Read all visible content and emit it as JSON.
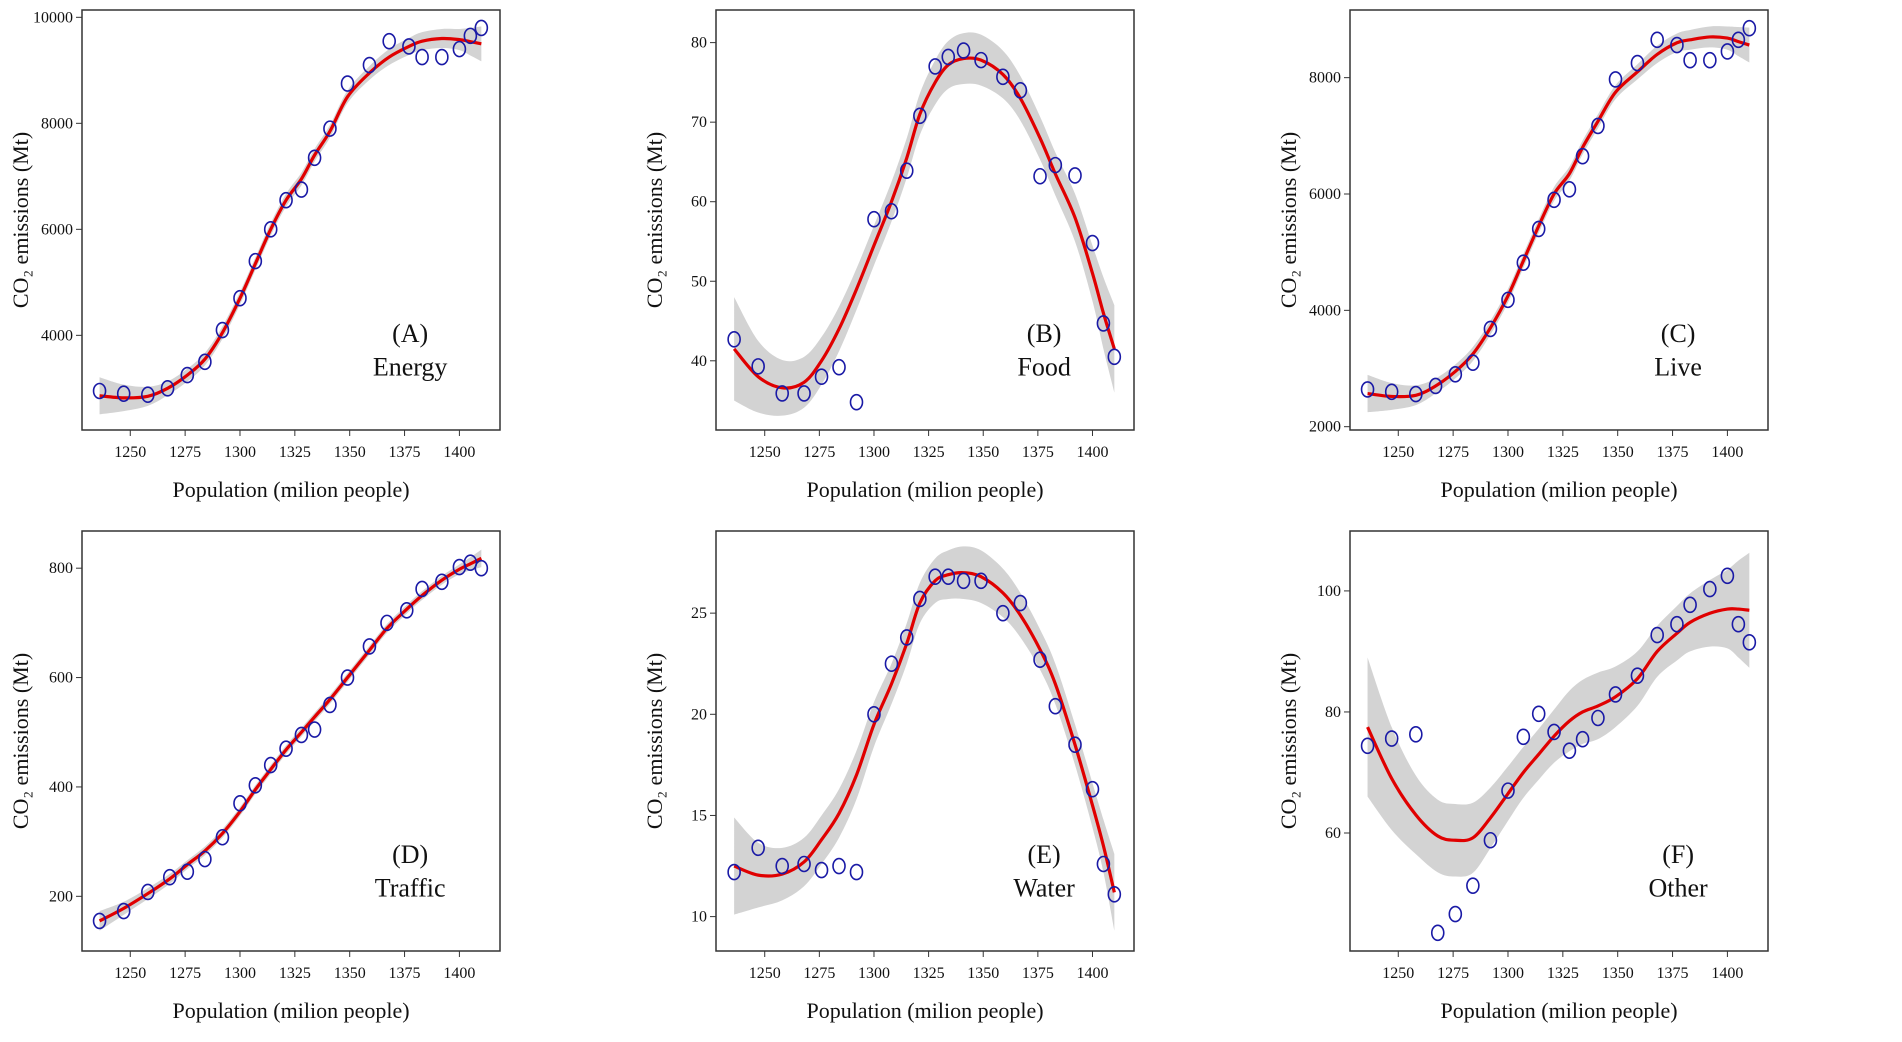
{
  "chart_data": [
    {
      "type": "scatter",
      "panel": "(A)",
      "title": "Energy",
      "xlabel": "Population (milion people)",
      "ylabel": "CO₂ emissions (Mt)",
      "xlim": [
        1228,
        1418.5
      ],
      "ylim": [
        2214,
        10138
      ],
      "xticks": [
        1250,
        1275,
        1300,
        1325,
        1350,
        1375,
        1400
      ],
      "yticks": [
        4000,
        6000,
        8000,
        10000
      ],
      "x": [
        1236,
        1247,
        1258,
        1267,
        1276,
        1284,
        1292,
        1300,
        1307,
        1314,
        1321,
        1328,
        1334,
        1341,
        1349,
        1359,
        1368,
        1377,
        1383,
        1392,
        1400,
        1405,
        1410
      ],
      "y": [
        2950,
        2900,
        2880,
        3000,
        3250,
        3500,
        4100,
        4700,
        5400,
        6000,
        6550,
        6750,
        7350,
        7900,
        8750,
        9100,
        9550,
        9450,
        9250,
        9250,
        9400,
        9650,
        9800
      ],
      "fit": [
        2860,
        2820,
        2850,
        3000,
        3250,
        3550,
        4050,
        4700,
        5350,
        6000,
        6550,
        6950,
        7400,
        7850,
        8500,
        8950,
        9250,
        9450,
        9550,
        9600,
        9580,
        9540,
        9500
      ],
      "ci_halfwidth": [
        350,
        250,
        180,
        130,
        120,
        120,
        120,
        120,
        120,
        120,
        120,
        120,
        120,
        120,
        120,
        130,
        150,
        160,
        170,
        180,
        200,
        260,
        330
      ]
    },
    {
      "type": "scatter",
      "panel": "(B)",
      "title": "Food",
      "xlabel": "Population (milion people)",
      "ylabel": "CO₂ emissions (Mt)",
      "xlim": [
        1227.7,
        1419
      ],
      "ylim": [
        31.3,
        84.1
      ],
      "xticks": [
        1250,
        1275,
        1300,
        1325,
        1350,
        1375,
        1400
      ],
      "yticks": [
        40,
        50,
        60,
        70,
        80
      ],
      "x": [
        1236,
        1247,
        1258,
        1268,
        1276,
        1284,
        1292,
        1300,
        1308,
        1315,
        1321,
        1328,
        1334,
        1341,
        1349,
        1359,
        1367,
        1376,
        1383,
        1392,
        1400,
        1405,
        1410
      ],
      "y": [
        42.7,
        39.3,
        35.9,
        35.9,
        38,
        39.2,
        34.8,
        57.8,
        58.8,
        63.9,
        70.8,
        77,
        78.2,
        79,
        77.8,
        75.7,
        74,
        63.2,
        64.6,
        63.3,
        54.8,
        44.7,
        40.5
      ],
      "fit": [
        41.5,
        38,
        36.6,
        37.3,
        40,
        44,
        49,
        54.5,
        60,
        65.5,
        71,
        75,
        77.2,
        78,
        77.8,
        76,
        73,
        68,
        63.5,
        58,
        51,
        46,
        41.5
      ],
      "ci_halfwidth": [
        6.5,
        4.5,
        3.5,
        3.2,
        3,
        2.8,
        2.6,
        2.5,
        2.5,
        2.5,
        2.6,
        2.8,
        3,
        3.2,
        3.2,
        3,
        2.8,
        2.7,
        2.7,
        3,
        3.5,
        4.5,
        5.5
      ]
    },
    {
      "type": "scatter",
      "panel": "(C)",
      "title": "Live",
      "xlabel": "Population (milion people)",
      "ylabel": "CO₂ emissions (Mt)",
      "xlim": [
        1228,
        1418.5
      ],
      "ylim": [
        1943,
        9163
      ],
      "xticks": [
        1250,
        1275,
        1300,
        1325,
        1350,
        1375,
        1400
      ],
      "yticks": [
        2000,
        4000,
        6000,
        8000
      ],
      "x": [
        1236,
        1247,
        1258,
        1267,
        1276,
        1284,
        1292,
        1300,
        1307,
        1314,
        1321,
        1328,
        1334,
        1341,
        1349,
        1359,
        1368,
        1377,
        1383,
        1392,
        1400,
        1405,
        1410
      ],
      "y": [
        2640,
        2600,
        2560,
        2700,
        2900,
        3100,
        3680,
        4180,
        4820,
        5400,
        5900,
        6080,
        6650,
        7170,
        7970,
        8250,
        8650,
        8560,
        8300,
        8300,
        8450,
        8650,
        8850
      ],
      "fit": [
        2570,
        2520,
        2540,
        2700,
        2950,
        3250,
        3700,
        4250,
        4850,
        5450,
        6000,
        6350,
        6800,
        7250,
        7750,
        8100,
        8400,
        8600,
        8650,
        8700,
        8680,
        8620,
        8560
      ],
      "ci_halfwidth": [
        320,
        230,
        170,
        130,
        120,
        120,
        120,
        120,
        120,
        120,
        120,
        120,
        120,
        120,
        120,
        130,
        150,
        160,
        170,
        180,
        200,
        250,
        300
      ]
    },
    {
      "type": "scatter",
      "panel": "(D)",
      "title": "Traffic",
      "xlabel": "Population (milion people)",
      "ylabel": "CO₂ emissions (Mt)",
      "xlim": [
        1228,
        1418.5
      ],
      "ylim": [
        100,
        868
      ],
      "xticks": [
        1250,
        1275,
        1300,
        1325,
        1350,
        1375,
        1400
      ],
      "yticks": [
        200,
        400,
        600,
        800
      ],
      "x": [
        1236,
        1247,
        1258,
        1268,
        1276,
        1284,
        1292,
        1300,
        1307,
        1314,
        1321,
        1328,
        1334,
        1341,
        1349,
        1359,
        1367,
        1376,
        1383,
        1392,
        1400,
        1405,
        1410
      ],
      "y": [
        155,
        173,
        208,
        235,
        245,
        268,
        308,
        370,
        403,
        440,
        470,
        495,
        505,
        550,
        600,
        657,
        700,
        723,
        762,
        775,
        802,
        810,
        800
      ],
      "fit": [
        155,
        178,
        205,
        232,
        258,
        283,
        315,
        355,
        395,
        432,
        468,
        500,
        528,
        560,
        600,
        650,
        690,
        725,
        750,
        778,
        798,
        808,
        818
      ],
      "ci_halfwidth": [
        18,
        12,
        10,
        9,
        8,
        8,
        8,
        8,
        8,
        8,
        8,
        8,
        8,
        8,
        8,
        8,
        8,
        8,
        8,
        8,
        9,
        12,
        16
      ]
    },
    {
      "type": "scatter",
      "panel": "(E)",
      "title": "Water",
      "xlabel": "Population (milion people)",
      "ylabel": "CO₂ emissions (Mt)",
      "xlim": [
        1227.7,
        1419
      ],
      "ylim": [
        8.3,
        29.06
      ],
      "xticks": [
        1250,
        1275,
        1300,
        1325,
        1350,
        1375,
        1400
      ],
      "yticks": [
        10,
        15,
        20,
        25
      ],
      "x": [
        1236,
        1247,
        1258,
        1268,
        1276,
        1284,
        1292,
        1300,
        1308,
        1315,
        1321,
        1328,
        1334,
        1341,
        1349,
        1359,
        1367,
        1376,
        1383,
        1392,
        1400,
        1405,
        1410
      ],
      "y": [
        12.2,
        13.4,
        12.5,
        12.6,
        12.3,
        12.5,
        12.2,
        20.0,
        22.5,
        23.8,
        25.7,
        26.8,
        26.8,
        26.6,
        26.6,
        25.0,
        25.5,
        22.7,
        20.4,
        18.5,
        16.3,
        12.6,
        11.1
      ],
      "fit": [
        12.5,
        12.05,
        12.1,
        12.7,
        13.8,
        15.1,
        17.0,
        19.5,
        21.5,
        23.5,
        25.5,
        26.6,
        26.9,
        27.0,
        26.8,
        26.0,
        24.9,
        23.2,
        21.5,
        18.5,
        15.5,
        13.5,
        11.2
      ],
      "ci_halfwidth": [
        2.4,
        1.6,
        1.3,
        1.2,
        1.2,
        1.2,
        1.2,
        1.1,
        1.0,
        1.0,
        1.0,
        1.1,
        1.2,
        1.3,
        1.3,
        1.2,
        1.1,
        1.0,
        1.0,
        1.0,
        1.1,
        1.3,
        1.9
      ]
    },
    {
      "type": "scatter",
      "panel": "(F)",
      "title": "Other",
      "xlabel": "Population (milion people)",
      "ylabel": "CO₂ emissions (Mt)",
      "xlim": [
        1228,
        1418.5
      ],
      "ylim": [
        40.5,
        109.9
      ],
      "xticks": [
        1250,
        1275,
        1300,
        1325,
        1350,
        1375,
        1400
      ],
      "yticks": [
        60,
        80,
        100
      ],
      "x": [
        1236,
        1247,
        1258,
        1268,
        1276,
        1284,
        1292,
        1300,
        1307,
        1314,
        1321,
        1328,
        1334,
        1341,
        1349,
        1359,
        1368,
        1377,
        1383,
        1392,
        1400,
        1405,
        1410
      ],
      "y": [
        74.4,
        75.6,
        76.3,
        43.5,
        46.6,
        51.3,
        58.8,
        67.0,
        75.9,
        79.7,
        76.7,
        73.6,
        75.5,
        79.0,
        82.9,
        86.0,
        92.7,
        94.5,
        97.7,
        100.3,
        102.5,
        94.5,
        91.5
      ],
      "fit": [
        77.5,
        69,
        63,
        59.5,
        58.8,
        59.2,
        62.5,
        66.5,
        70,
        73,
        76,
        78.5,
        80,
        81,
        82.5,
        85.5,
        90,
        93,
        94.8,
        96.3,
        97,
        97,
        96.8
      ],
      "ci_halfwidth": [
        11.5,
        8.5,
        6.5,
        6,
        6,
        5.8,
        5,
        4.5,
        4.2,
        4.2,
        4.4,
        5,
        5.3,
        5.5,
        5,
        4.5,
        4.2,
        4.5,
        4.8,
        5.5,
        6.5,
        8,
        9.5
      ]
    }
  ],
  "colors": {
    "points": "#1a1aa6",
    "fit": "#e00000",
    "band": "#d3d3d3",
    "frame": "#333333"
  }
}
